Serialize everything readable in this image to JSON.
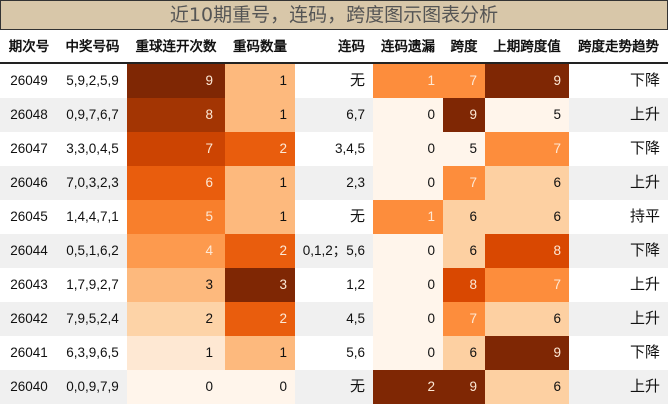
{
  "title": "近10期重号，连码，跨度图示图表分析",
  "headers": [
    "期次号",
    "中奖号码",
    "重球连开次数",
    "重码数量",
    "连码",
    "连码遗漏",
    "跨度",
    "上期跨度值",
    "跨度走势趋势"
  ],
  "rows": [
    [
      "26049",
      "5,9,2,5,9",
      "9",
      "1",
      "无",
      "1",
      "7",
      "9",
      "下降"
    ],
    [
      "26048",
      "0,9,7,6,7",
      "8",
      "1",
      "6,7",
      "0",
      "9",
      "5",
      "上升"
    ],
    [
      "26047",
      "3,3,0,4,5",
      "7",
      "2",
      "3,4,5",
      "0",
      "5",
      "7",
      "下降"
    ],
    [
      "26046",
      "7,0,3,2,3",
      "6",
      "1",
      "2,3",
      "0",
      "7",
      "6",
      "上升"
    ],
    [
      "26045",
      "1,4,4,7,1",
      "5",
      "1",
      "无",
      "1",
      "6",
      "6",
      "持平"
    ],
    [
      "26044",
      "0,5,1,6,2",
      "4",
      "2",
      "0,1,2；5,6",
      "0",
      "6",
      "8",
      "下降"
    ],
    [
      "26043",
      "1,7,9,2,7",
      "3",
      "3",
      "1,2",
      "0",
      "8",
      "7",
      "上升"
    ],
    [
      "26042",
      "7,9,5,2,4",
      "2",
      "2",
      "4,5",
      "0",
      "7",
      "6",
      "上升"
    ],
    [
      "26041",
      "6,3,9,6,5",
      "1",
      "1",
      "5,6",
      "0",
      "6",
      "9",
      "下降"
    ],
    [
      "26040",
      "0,0,9,7,9",
      "0",
      "0",
      "无",
      "2",
      "9",
      "6",
      "上升"
    ]
  ],
  "colors": {
    "row_alt": "#f0f0f0",
    "重球连开次数": {
      "0": "#fff5eb",
      "1": "#fee8d3",
      "2": "#fdd3a7",
      "3": "#fdb97d",
      "4": "#fd9a4e",
      "5": "#f87f2c",
      "6": "#e95d0d",
      "7": "#cc4402",
      "8": "#a33503",
      "9": "#7f2704"
    },
    "重码数量": {
      "0": "#fff5eb",
      "1": "#fdb97d",
      "2": "#e95d0d",
      "3": "#7f2704"
    },
    "连码遗漏": {
      "0": "#fff5eb",
      "1": "#fd8d3c",
      "2": "#7f2704"
    },
    "跨度": {
      "5": "#fff5eb",
      "6": "#fdd0a2",
      "7": "#fd8d3c",
      "8": "#d94801",
      "9": "#7f2704"
    },
    "上期跨度值": {
      "5": "#fff5eb",
      "6": "#fdd0a2",
      "7": "#fd8d3c",
      "8": "#d94801",
      "9": "#7f2704"
    }
  }
}
